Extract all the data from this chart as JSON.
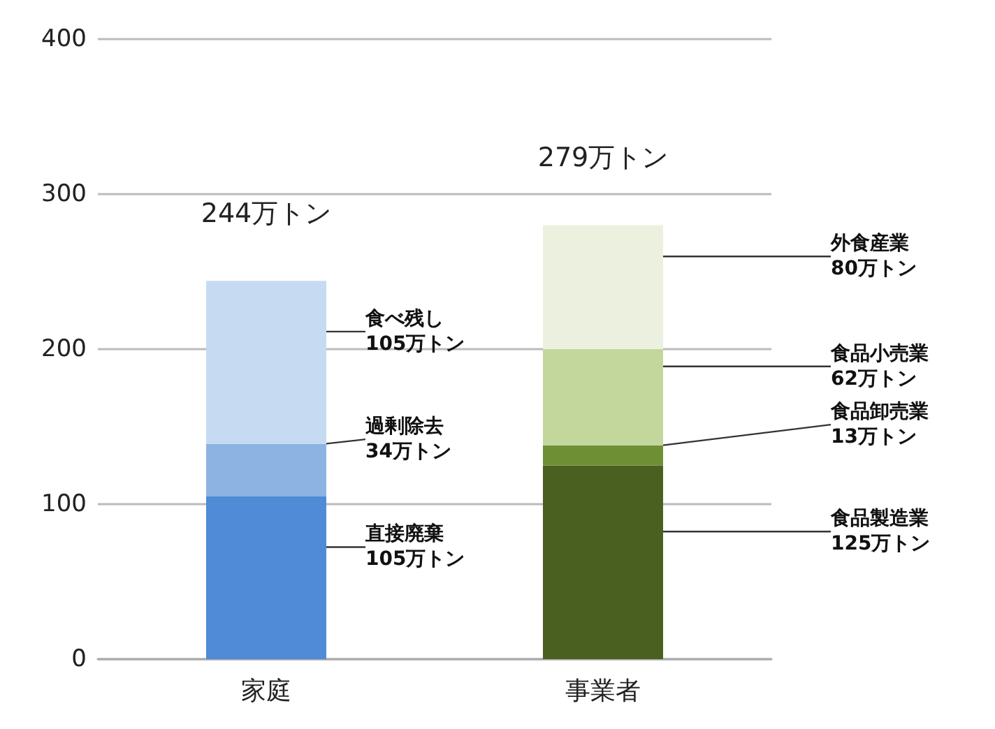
{
  "chart_data": {
    "type": "bar",
    "stacked": true,
    "categories": [
      "家庭",
      "事業者"
    ],
    "series": [
      {
        "name": "直接廃棄",
        "color": "#4f8bd6",
        "values": [
          105,
          null
        ],
        "value_labels": [
          "105万トン",
          null
        ]
      },
      {
        "name": "過剰除去",
        "color": "#8db3e2",
        "values": [
          34,
          null
        ],
        "value_labels": [
          "34万トン",
          null
        ]
      },
      {
        "name": "食べ残し",
        "color": "#c6dbf2",
        "values": [
          105,
          null
        ],
        "value_labels": [
          "105万トン",
          null
        ]
      },
      {
        "name": "食品製造業",
        "color": "#4a6020",
        "values": [
          null,
          125
        ],
        "value_labels": [
          null,
          "125万トン"
        ]
      },
      {
        "name": "食品卸売業",
        "color": "#6f8f35",
        "values": [
          null,
          13
        ],
        "value_labels": [
          null,
          "13万トン"
        ]
      },
      {
        "name": "食品小売業",
        "color": "#c3d69b",
        "values": [
          null,
          62
        ],
        "value_labels": [
          null,
          "62万トン"
        ]
      },
      {
        "name": "外食産業",
        "color": "#ebf1de",
        "values": [
          null,
          80
        ],
        "value_labels": [
          null,
          "80万トン"
        ]
      }
    ],
    "totals": [
      "244万トン",
      "279万トン"
    ],
    "ylim": [
      0,
      400
    ],
    "yticks": [
      0,
      100,
      200,
      300,
      400
    ],
    "grid": "y",
    "legend": false
  }
}
